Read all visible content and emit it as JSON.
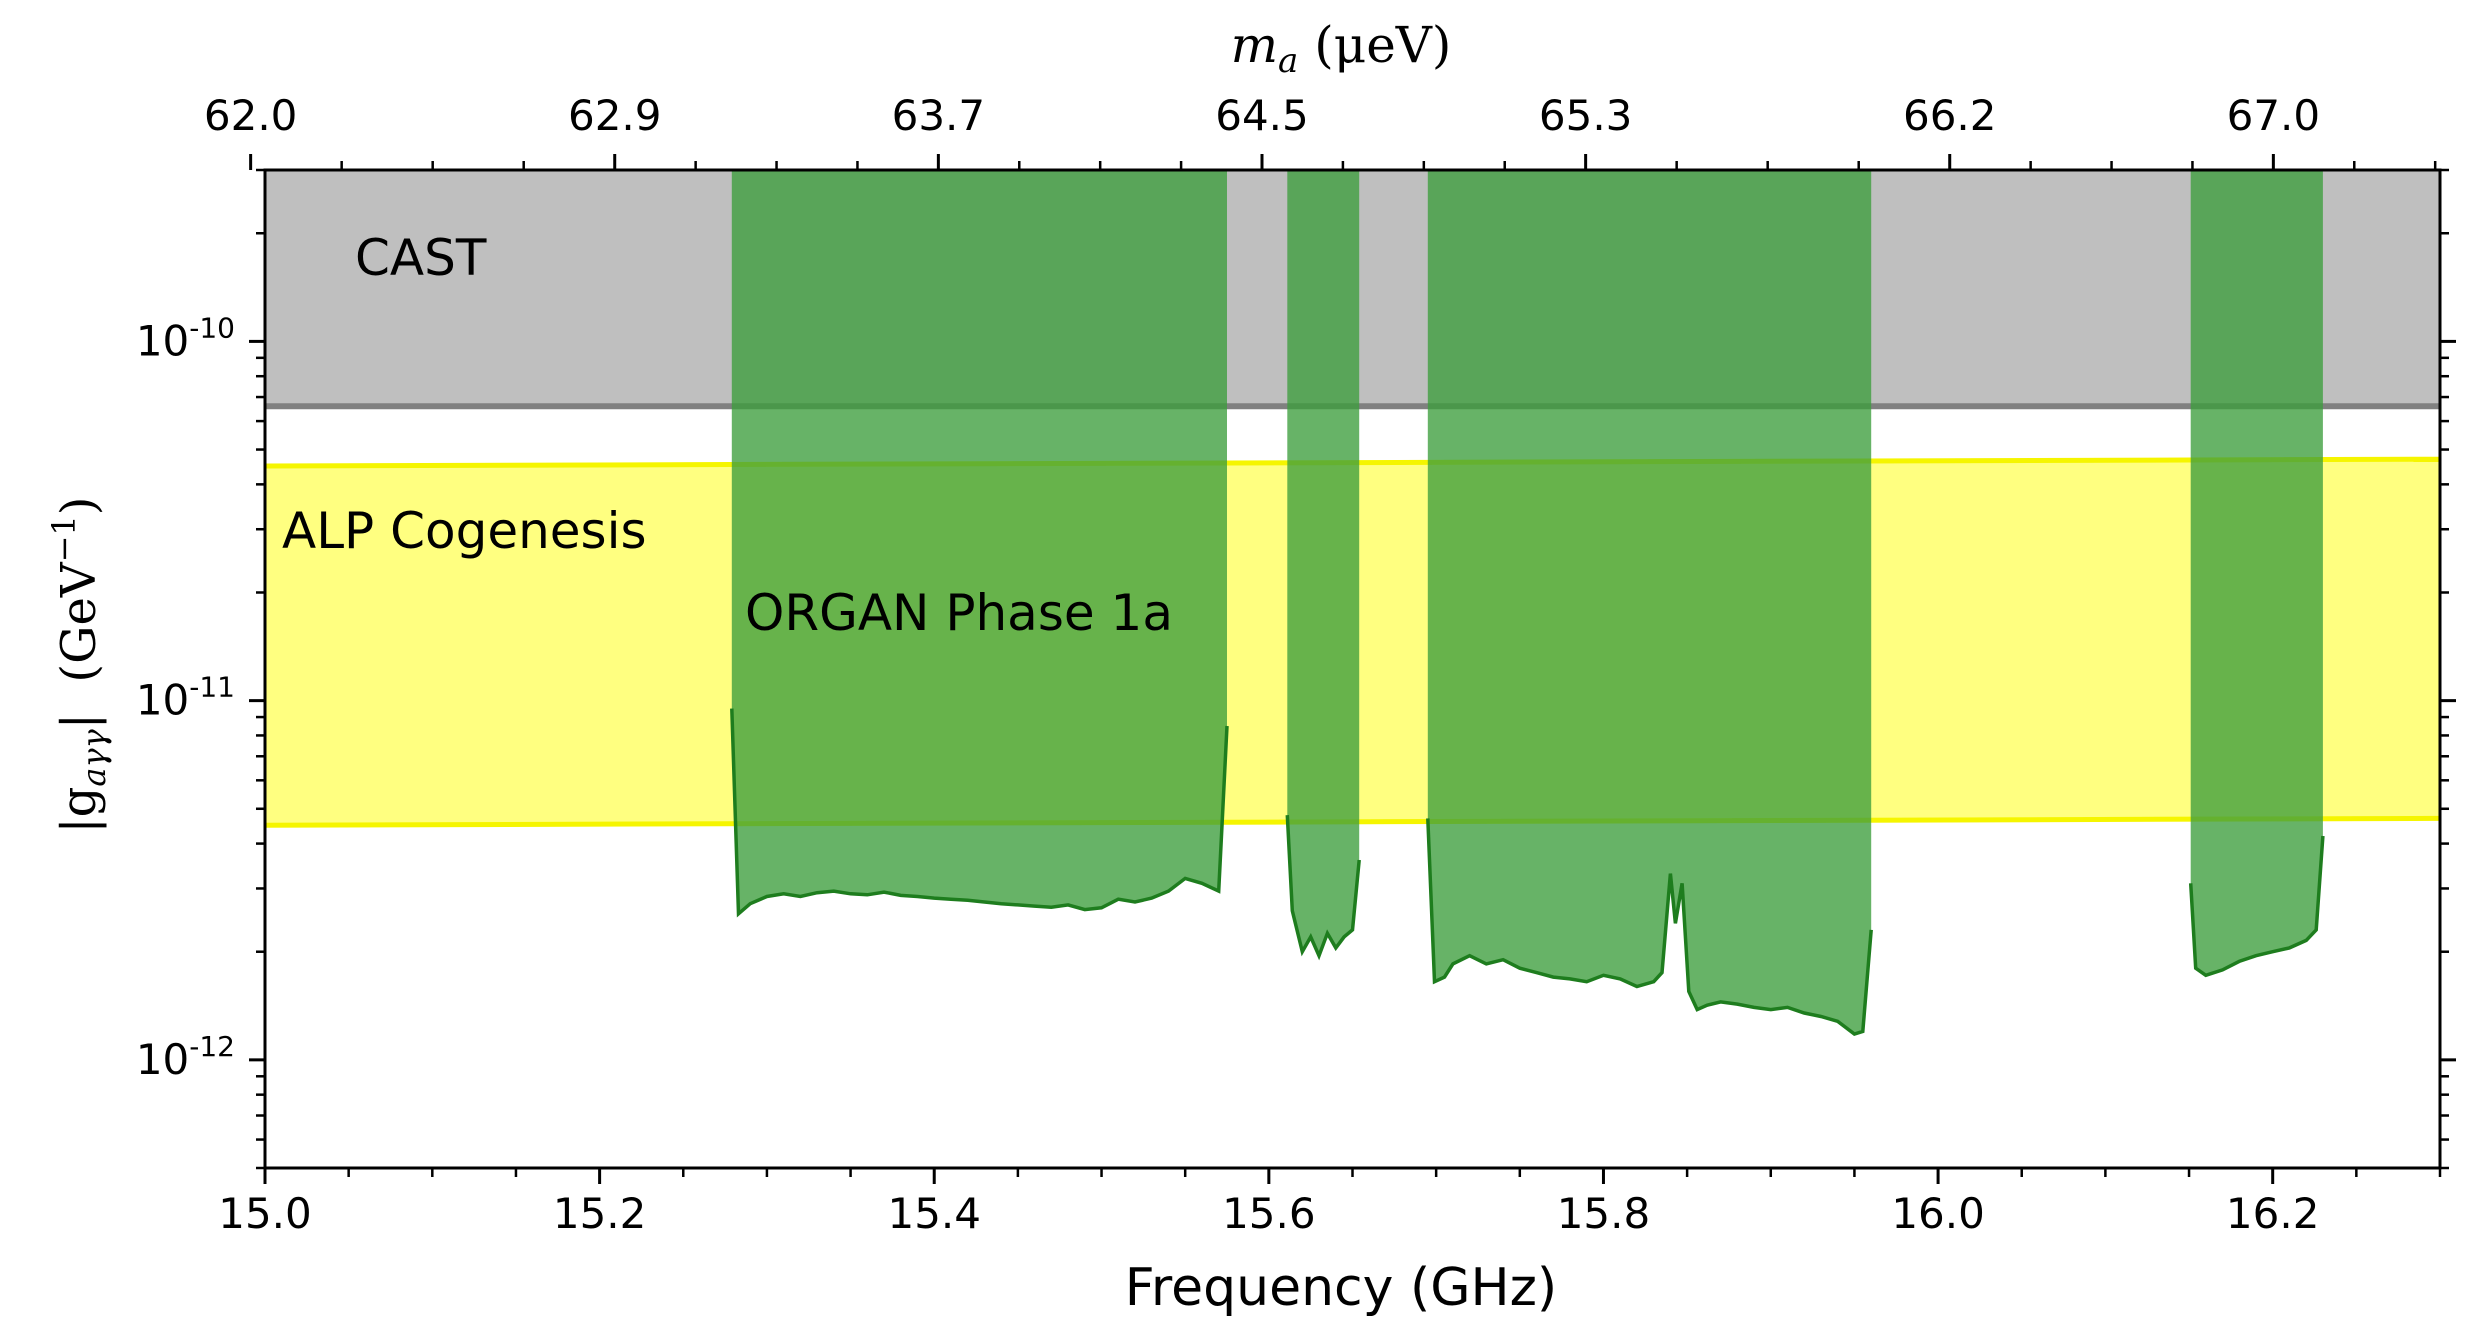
{
  "chart_data": {
    "type": "area",
    "xlabel": "Frequency (GHz)",
    "x_range_ghz": [
      15.0,
      16.3
    ],
    "x_ticks": [
      "15.0",
      "15.2",
      "15.4",
      "15.6",
      "15.8",
      "16.0",
      "16.2"
    ],
    "x_tick_values": [
      15.0,
      15.2,
      15.4,
      15.6,
      15.8,
      16.0,
      16.2
    ],
    "top_xlabel": "m_a (μeV)",
    "top_xlabel_parts": {
      "symbol": "m",
      "subscript": "a",
      "unit": " (μeV)"
    },
    "top_ticks": [
      "62.0",
      "62.9",
      "63.7",
      "64.5",
      "65.3",
      "66.2",
      "67.0"
    ],
    "ylabel": "|g_aγγ|  (GeV⁻¹)",
    "ylabel_parts": {
      "symbol": "|g",
      "subscript": "aγγ",
      "bar": "|",
      "unit": "  (GeV",
      "exponent": "−1",
      "close": ")"
    },
    "y_scale": "log",
    "y_range": [
      5e-13,
      3e-10
    ],
    "y_ticks": [
      {
        "value": 1e-10,
        "base": "10",
        "exp": "-10"
      },
      {
        "value": 1e-11,
        "base": "10",
        "exp": "-11"
      },
      {
        "value": 1e-12,
        "base": "10",
        "exp": "-12"
      }
    ],
    "regions": {
      "cast": {
        "label": "CAST",
        "lower_limit": 6.6e-11,
        "fill": "#bfbfbf",
        "line": "#808080"
      },
      "cogenesis": {
        "label": "ALP Cogenesis",
        "lower": [
          4.5e-12,
          4.7e-12
        ],
        "upper": [
          4.5e-11,
          4.7e-11
        ],
        "fill": "#ffff80",
        "line": "#f5f500"
      },
      "organ": {
        "label": "ORGAN Phase 1a",
        "fill": "#3c9d3c",
        "line": "#1e7d1e"
      }
    },
    "series": [
      {
        "name": "ORGAN Phase 1a",
        "segments": [
          {
            "x": [
              15.279,
              15.283,
              15.29,
              15.3,
              15.31,
              15.32,
              15.33,
              15.34,
              15.35,
              15.36,
              15.37,
              15.38,
              15.39,
              15.4,
              15.41,
              15.42,
              15.43,
              15.44,
              15.45,
              15.46,
              15.47,
              15.48,
              15.49,
              15.5,
              15.51,
              15.52,
              15.53,
              15.54,
              15.55,
              15.56,
              15.57,
              15.575
            ],
            "y": [
              9.5e-12,
              2.55e-12,
              2.72e-12,
              2.85e-12,
              2.9e-12,
              2.85e-12,
              2.92e-12,
              2.95e-12,
              2.9e-12,
              2.88e-12,
              2.93e-12,
              2.87e-12,
              2.85e-12,
              2.82e-12,
              2.8e-12,
              2.78e-12,
              2.75e-12,
              2.72e-12,
              2.7e-12,
              2.68e-12,
              2.66e-12,
              2.7e-12,
              2.62e-12,
              2.65e-12,
              2.8e-12,
              2.75e-12,
              2.82e-12,
              2.95e-12,
              3.2e-12,
              3.1e-12,
              2.95e-12,
              8.5e-12
            ]
          },
          {
            "x": [
              15.611,
              15.614,
              15.62,
              15.625,
              15.63,
              15.635,
              15.64,
              15.645,
              15.65,
              15.654
            ],
            "y": [
              4.8e-12,
              2.6e-12,
              2e-12,
              2.2e-12,
              1.95e-12,
              2.25e-12,
              2.05e-12,
              2.2e-12,
              2.3e-12,
              3.6e-12
            ]
          },
          {
            "x": [
              15.695,
              15.699,
              15.705,
              15.71,
              15.72,
              15.73,
              15.74,
              15.75,
              15.76,
              15.77,
              15.78,
              15.79,
              15.8,
              15.81,
              15.82,
              15.83,
              15.835,
              15.84,
              15.843,
              15.847,
              15.851,
              15.856,
              15.862,
              15.87,
              15.88,
              15.89,
              15.9,
              15.91,
              15.92,
              15.93,
              15.94,
              15.95,
              15.955,
              15.96
            ],
            "y": [
              4.7e-12,
              1.65e-12,
              1.7e-12,
              1.85e-12,
              1.95e-12,
              1.85e-12,
              1.9e-12,
              1.8e-12,
              1.75e-12,
              1.7e-12,
              1.68e-12,
              1.65e-12,
              1.72e-12,
              1.68e-12,
              1.6e-12,
              1.65e-12,
              1.75e-12,
              3.3e-12,
              2.4e-12,
              3.1e-12,
              1.55e-12,
              1.38e-12,
              1.42e-12,
              1.45e-12,
              1.43e-12,
              1.4e-12,
              1.38e-12,
              1.4e-12,
              1.35e-12,
              1.32e-12,
              1.28e-12,
              1.18e-12,
              1.2e-12,
              2.3e-12
            ]
          },
          {
            "x": [
              16.151,
              16.154,
              16.16,
              16.17,
              16.18,
              16.19,
              16.2,
              16.21,
              16.22,
              16.226,
              16.23
            ],
            "y": [
              3.1e-12,
              1.8e-12,
              1.72e-12,
              1.78e-12,
              1.88e-12,
              1.95e-12,
              2e-12,
              2.05e-12,
              2.15e-12,
              2.3e-12,
              4.2e-12
            ]
          }
        ]
      }
    ],
    "grid": false,
    "legend": "none"
  }
}
